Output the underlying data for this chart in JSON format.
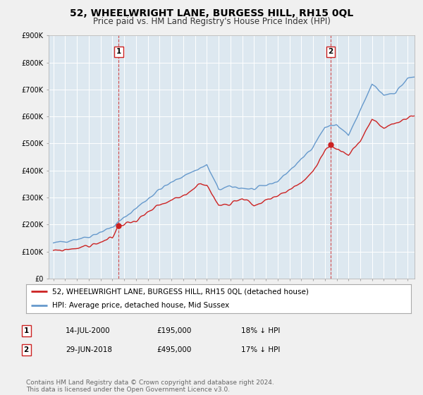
{
  "title": "52, WHEELWRIGHT LANE, BURGESS HILL, RH15 0QL",
  "subtitle": "Price paid vs. HM Land Registry's House Price Index (HPI)",
  "ylim": [
    0,
    900000
  ],
  "yticks": [
    0,
    100000,
    200000,
    300000,
    400000,
    500000,
    600000,
    700000,
    800000,
    900000
  ],
  "ytick_labels": [
    "£0",
    "£100K",
    "£200K",
    "£300K",
    "£400K",
    "£500K",
    "£600K",
    "£700K",
    "£800K",
    "£900K"
  ],
  "background_color": "#f0f0f0",
  "plot_bg_color": "#dde8f0",
  "grid_color": "#ffffff",
  "hpi_color": "#6699cc",
  "price_color": "#cc2222",
  "sale1_year": 2000.54,
  "sale1_price": 195000,
  "sale2_year": 2018.49,
  "sale2_price": 495000,
  "legend_entry1": "52, WHEELWRIGHT LANE, BURGESS HILL, RH15 0QL (detached house)",
  "legend_entry2": "HPI: Average price, detached house, Mid Sussex",
  "table_rows": [
    [
      "1",
      "14-JUL-2000",
      "£195,000",
      "18% ↓ HPI"
    ],
    [
      "2",
      "29-JUN-2018",
      "£495,000",
      "17% ↓ HPI"
    ]
  ],
  "footnote": "Contains HM Land Registry data © Crown copyright and database right 2024.\nThis data is licensed under the Open Government Licence v3.0.",
  "title_fontsize": 10,
  "subtitle_fontsize": 8.5,
  "tick_fontsize": 7,
  "legend_fontsize": 7.5,
  "table_fontsize": 7.5,
  "footnote_fontsize": 6.5
}
